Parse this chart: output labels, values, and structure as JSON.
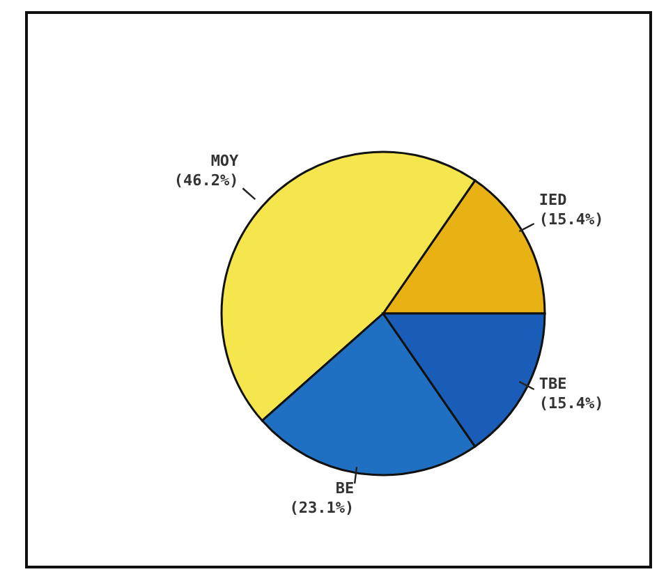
{
  "chart_data": {
    "type": "pie",
    "categories": [
      "IED",
      "MOY",
      "BE",
      "TBE"
    ],
    "values": [
      15.4,
      46.2,
      23.1,
      15.4
    ],
    "value_labels": [
      "(15.4%)",
      "(46.2%)",
      "(23.1%)",
      "(15.4%)"
    ],
    "colors": [
      "#e8b214",
      "#f4e64c",
      "#1f70c2",
      "#1a5db9"
    ],
    "legend": false
  }
}
